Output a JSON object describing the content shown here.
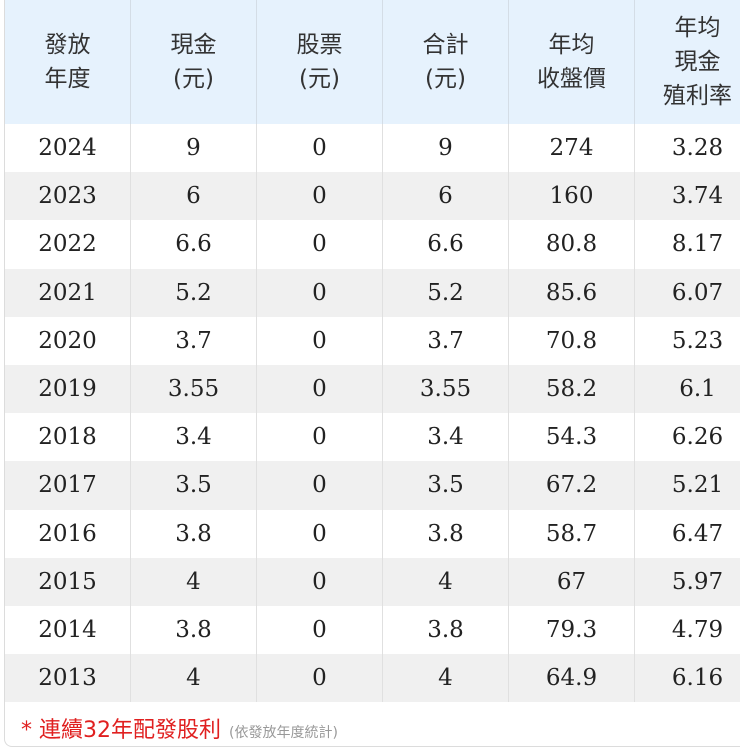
{
  "table": {
    "headers": [
      {
        "line1": "發放",
        "line2": "年度",
        "line3": ""
      },
      {
        "line1": "現金",
        "line2": "(元)",
        "line3": ""
      },
      {
        "line1": "股票",
        "line2": "(元)",
        "line3": ""
      },
      {
        "line1": "合計",
        "line2": "(元)",
        "line3": ""
      },
      {
        "line1": "年均",
        "line2": "收盤價",
        "line3": ""
      },
      {
        "line1": "年均",
        "line2": "現金",
        "line3": "殖利率"
      }
    ],
    "rows": [
      [
        "2024",
        "9",
        "0",
        "9",
        "274",
        "3.28"
      ],
      [
        "2023",
        "6",
        "0",
        "6",
        "160",
        "3.74"
      ],
      [
        "2022",
        "6.6",
        "0",
        "6.6",
        "80.8",
        "8.17"
      ],
      [
        "2021",
        "5.2",
        "0",
        "5.2",
        "85.6",
        "6.07"
      ],
      [
        "2020",
        "3.7",
        "0",
        "3.7",
        "70.8",
        "5.23"
      ],
      [
        "2019",
        "3.55",
        "0",
        "3.55",
        "58.2",
        "6.1"
      ],
      [
        "2018",
        "3.4",
        "0",
        "3.4",
        "54.3",
        "6.26"
      ],
      [
        "2017",
        "3.5",
        "0",
        "3.5",
        "67.2",
        "5.21"
      ],
      [
        "2016",
        "3.8",
        "0",
        "3.8",
        "58.7",
        "6.47"
      ],
      [
        "2015",
        "4",
        "0",
        "4",
        "67",
        "5.97"
      ],
      [
        "2014",
        "3.8",
        "0",
        "3.8",
        "79.3",
        "4.79"
      ],
      [
        "2013",
        "4",
        "0",
        "4",
        "64.9",
        "6.16"
      ]
    ]
  },
  "footnote": {
    "main": "* 連續32年配發股利",
    "sub": "(依發放年度統計)"
  },
  "colors": {
    "header_bg": "#e6f2fd",
    "alt_row_bg": "#f0f0f0",
    "footnote_red": "#e02020",
    "footnote_gray": "#999999"
  }
}
